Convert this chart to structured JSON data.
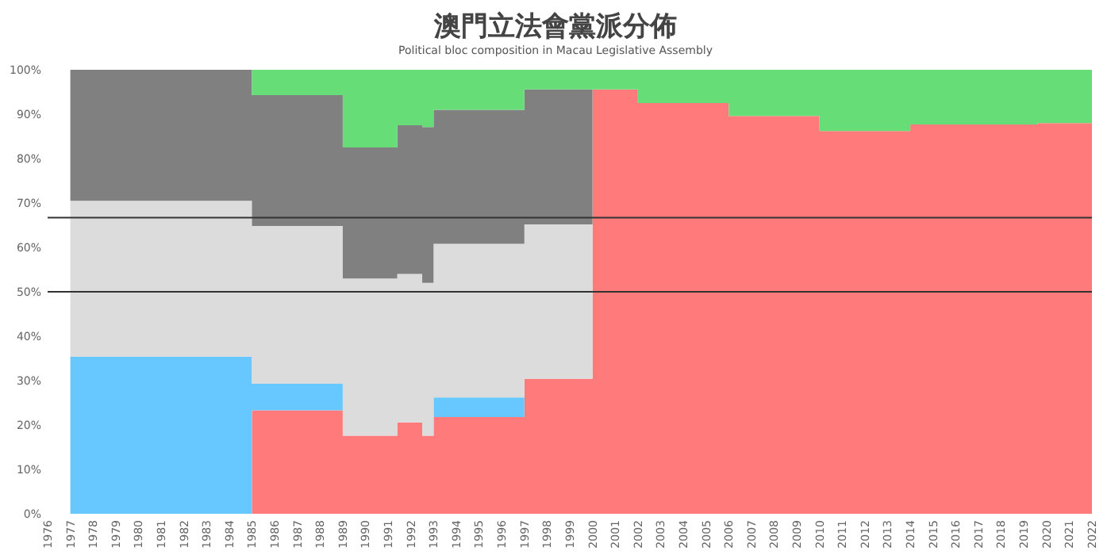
{
  "chart_data": {
    "type": "area",
    "stacked": true,
    "title": "澳門立法會黨派分佈",
    "subtitle": "Political bloc composition in Macau Legislative Assembly",
    "x": [
      1977,
      1985,
      1985,
      1989,
      1989,
      1991.4,
      1991.4,
      1992.5,
      1992.5,
      1993,
      1993,
      1997,
      1997,
      2000,
      2000,
      2002,
      2002,
      2006,
      2006,
      2010,
      2010,
      2014,
      2014,
      2019.6,
      2019.6,
      2022
    ],
    "series": [
      {
        "color": "#ff7b7b",
        "values": [
          null,
          null,
          23.3,
          23.3,
          17.6,
          17.6,
          20.6,
          20.6,
          17.6,
          17.6,
          21.8,
          21.8,
          30.4,
          30.4,
          95.6,
          95.6,
          92.5,
          92.5,
          89.6,
          89.6,
          86.2,
          86.2,
          87.7,
          87.7,
          88,
          88
        ]
      },
      {
        "color": "#66c8ff",
        "values": [
          35.4,
          35.4,
          6,
          6,
          null,
          null,
          null,
          null,
          null,
          null,
          4.4,
          4.4,
          null,
          null,
          null,
          null,
          null,
          null,
          null,
          null,
          null,
          null,
          null,
          null,
          null,
          null
        ]
      },
      {
        "color": "#dcdcdc",
        "values": [
          35.1,
          35.1,
          35.5,
          35.5,
          35.4,
          35.4,
          33.4,
          33.4,
          34.4,
          34.4,
          34.6,
          34.6,
          34.8,
          34.8,
          null,
          null,
          null,
          null,
          null,
          null,
          null,
          null,
          null,
          null,
          null,
          null
        ]
      },
      {
        "color": "#808080",
        "values": [
          29.5,
          29.5,
          29.5,
          29.5,
          29.5,
          29.5,
          33.5,
          33.5,
          35.1,
          35.1,
          30.2,
          30.2,
          30.4,
          30.4,
          null,
          null,
          null,
          null,
          null,
          null,
          null,
          null,
          null,
          null,
          null,
          null
        ]
      },
      {
        "color": "#66dd77",
        "values": [
          null,
          null,
          5.7,
          5.7,
          17.5,
          17.5,
          12.5,
          12.5,
          12.9,
          12.9,
          9,
          9,
          4.4,
          4.4,
          4.4,
          4.4,
          7.5,
          7.5,
          10.4,
          10.4,
          13.8,
          13.8,
          12.3,
          12.3,
          12,
          12
        ]
      }
    ],
    "xlim": [
      1976,
      2022
    ],
    "xticks": [
      1976,
      1977,
      1978,
      1979,
      1980,
      1981,
      1982,
      1983,
      1984,
      1985,
      1986,
      1987,
      1988,
      1989,
      1990,
      1991,
      1992,
      1993,
      1994,
      1995,
      1996,
      1997,
      1998,
      1999,
      2000,
      2001,
      2002,
      2003,
      2004,
      2005,
      2006,
      2007,
      2008,
      2009,
      2010,
      2011,
      2012,
      2013,
      2014,
      2015,
      2016,
      2017,
      2018,
      2019,
      2020,
      2021,
      2022
    ],
    "ylim": [
      0,
      100
    ],
    "yticks": [
      {
        "value": 0,
        "label": "0%"
      },
      {
        "value": 10,
        "label": "10%"
      },
      {
        "value": 20,
        "label": "20%"
      },
      {
        "value": 30,
        "label": "30%"
      },
      {
        "value": 40,
        "label": "40%"
      },
      {
        "value": 50,
        "label": "50%"
      },
      {
        "value": 60,
        "label": "60%"
      },
      {
        "value": 70,
        "label": "70%"
      },
      {
        "value": 80,
        "label": "80%"
      },
      {
        "value": 90,
        "label": "90%"
      },
      {
        "value": 100,
        "label": "100%"
      }
    ],
    "ref_lines": [
      {
        "axis": "y",
        "value": 66.7,
        "color": "#333333"
      },
      {
        "axis": "y",
        "value": 50,
        "color": "#333333"
      }
    ],
    "grid": false
  }
}
